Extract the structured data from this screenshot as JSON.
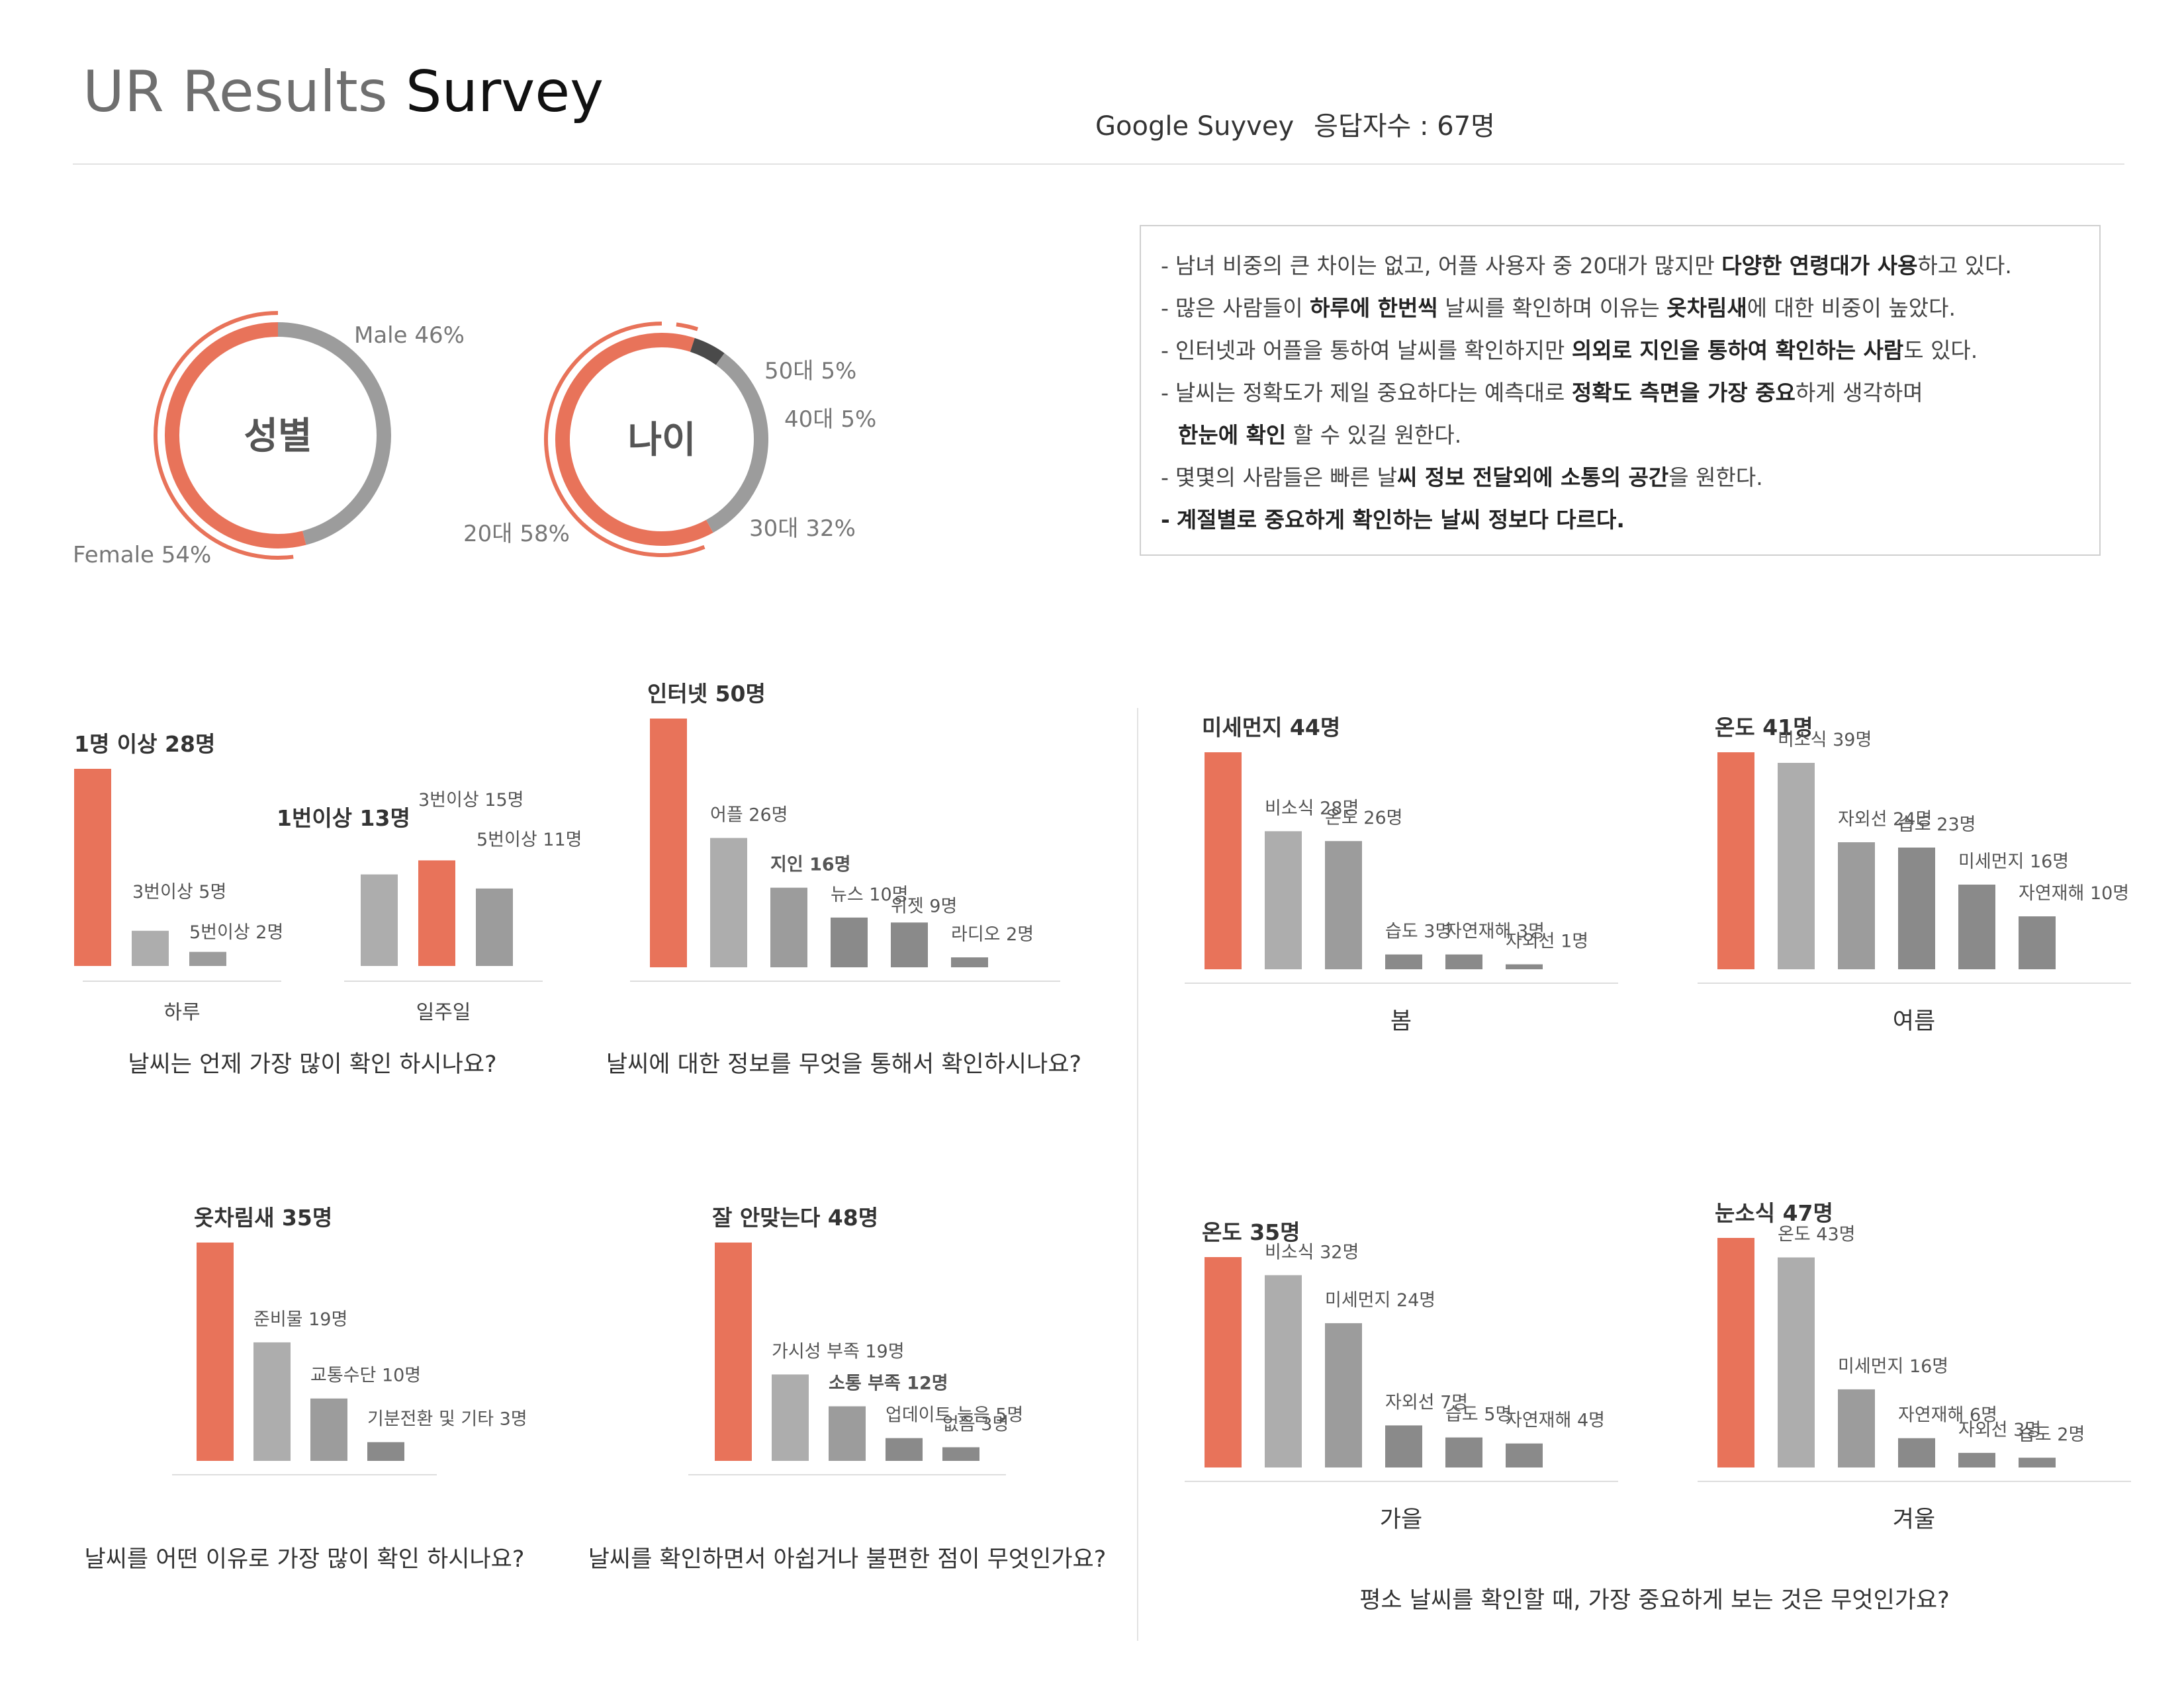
{
  "header": {
    "title_light": "UR Results",
    "title_bold": "Survey",
    "source": "Google Suyvey",
    "respondents": "응답자수 : 67명"
  },
  "summary": {
    "lines": [
      {
        "parts": [
          {
            "t": "남녀 비중의 큰 차이는 없고, 어플 사용자 중 20대가 많지만 "
          },
          {
            "t": "다양한 연령대가 사용",
            "b": true
          },
          {
            "t": "하고 있다."
          }
        ]
      },
      {
        "parts": [
          {
            "t": "많은 사람들이 "
          },
          {
            "t": "하루에 한번씩",
            "b": true
          },
          {
            "t": " 날씨를 확인하며 이유는 "
          },
          {
            "t": "옷차림새",
            "b": true
          },
          {
            "t": "에 대한 비중이 높았다."
          }
        ]
      },
      {
        "parts": [
          {
            "t": "인터넷과 어플을 통하여 날씨를 확인하지만 "
          },
          {
            "t": "의외로 지인을 통하여 확인하는 사람",
            "b": true
          },
          {
            "t": "도 있다."
          }
        ]
      },
      {
        "parts": [
          {
            "t": "날씨는 정확도가 제일 중요하다는 예측대로 "
          },
          {
            "t": "정확도 측면을 가장 중요",
            "b": true
          },
          {
            "t": "하게 생각하며"
          }
        ]
      },
      {
        "indent": true,
        "parts": [
          {
            "t": "한눈에 확인",
            "b": true
          },
          {
            "t": " 할 수 있길 원한다."
          }
        ]
      },
      {
        "parts": [
          {
            "t": "몇몇의 사람들은 빠른 날"
          },
          {
            "t": "씨 정보 전달외에 소통의 공간",
            "b": true
          },
          {
            "t": "을 원한다."
          }
        ]
      },
      {
        "boldAll": true,
        "parts": [
          {
            "t": "계절별로 중요하게 확인하는 날씨 정보다 다르다."
          }
        ]
      }
    ]
  },
  "colors": {
    "accent": "#e8735a",
    "gray1": "#adadad",
    "gray2": "#9c9c9c",
    "gray3": "#8a8a8a",
    "gray4": "#7a7a7a",
    "dark": "#4a4a4a",
    "axis": "#dddddd"
  },
  "chart_data": [
    {
      "type": "pie",
      "title": "성별",
      "slices": [
        {
          "label": "Male 46%",
          "value": 46
        },
        {
          "label": "Female 54%",
          "value": 54
        }
      ]
    },
    {
      "type": "pie",
      "title": "나이",
      "slices": [
        {
          "label": "50대 5%",
          "value": 5
        },
        {
          "label": "40대 5%",
          "value": 5
        },
        {
          "label": "30대 32%",
          "value": 32
        },
        {
          "label": "20대 58%",
          "value": 58
        }
      ]
    },
    {
      "type": "bar",
      "question": "날씨는 언제 가장 많이 확인 하시나요?",
      "groups": [
        {
          "name": "하루",
          "bars": [
            {
              "label": "1명 이상 28명",
              "value": 28
            },
            {
              "label": "3번이상 5명",
              "value": 5
            },
            {
              "label": "5번이상 2명",
              "value": 2
            }
          ]
        },
        {
          "name": "일주일",
          "bars": [
            {
              "label": "1번이상 13명",
              "value": 13
            },
            {
              "label": "3번이상 15명",
              "value": 15
            },
            {
              "label": "5번이상 11명",
              "value": 11
            }
          ]
        }
      ]
    },
    {
      "type": "bar",
      "question": "날씨에 대한 정보를 무엇을 통해서 확인하시나요?",
      "bars": [
        {
          "label": "인터넷 50명",
          "value": 50
        },
        {
          "label": "어플 26명",
          "value": 26
        },
        {
          "label": "지인 16명",
          "value": 16
        },
        {
          "label": "뉴스 10명",
          "value": 10
        },
        {
          "label": "위젯 9명",
          "value": 9
        },
        {
          "label": "라디오 2명",
          "value": 2
        }
      ]
    },
    {
      "type": "bar",
      "question": "날씨를 어떤 이유로 가장 많이 확인 하시나요?",
      "bars": [
        {
          "label": "옷차림새 35명",
          "value": 35
        },
        {
          "label": "준비물 19명",
          "value": 19
        },
        {
          "label": "교통수단 10명",
          "value": 10
        },
        {
          "label": "기분전환 및 기타 3명",
          "value": 3
        }
      ]
    },
    {
      "type": "bar",
      "question": "날씨를 확인하면서 아쉽거나 불편한 점이 무엇인가요?",
      "bars": [
        {
          "label": "잘 안맞는다 48명",
          "value": 48
        },
        {
          "label": "가시성 부족 19명",
          "value": 19
        },
        {
          "label": "소통 부족 12명",
          "value": 12
        },
        {
          "label": "업데이트 늦음 5명",
          "value": 5
        },
        {
          "label": "없음 3명",
          "value": 3
        }
      ]
    },
    {
      "type": "bar",
      "season": "봄",
      "bars": [
        {
          "label": "미세먼지 44명",
          "value": 44
        },
        {
          "label": "비소식 28명",
          "value": 28
        },
        {
          "label": "온도 26명",
          "value": 26
        },
        {
          "label": "습도 3명",
          "value": 3
        },
        {
          "label": "자연재해 3명",
          "value": 3
        },
        {
          "label": "자외선 1명",
          "value": 1
        }
      ]
    },
    {
      "type": "bar",
      "season": "여름",
      "bars": [
        {
          "label": "온도 41명",
          "value": 41
        },
        {
          "label": "비소식 39명",
          "value": 39
        },
        {
          "label": "자외선 24명",
          "value": 24
        },
        {
          "label": "습도 23명",
          "value": 23
        },
        {
          "label": "미세먼지 16명",
          "value": 16
        },
        {
          "label": "자연재해 10명",
          "value": 10
        }
      ]
    },
    {
      "type": "bar",
      "season": "가을",
      "bars": [
        {
          "label": "온도 35명",
          "value": 35
        },
        {
          "label": "비소식 32명",
          "value": 32
        },
        {
          "label": "미세먼지 24명",
          "value": 24
        },
        {
          "label": "자외선 7명",
          "value": 7
        },
        {
          "label": "습도 5명",
          "value": 5
        },
        {
          "label": "자연재해 4명",
          "value": 4
        }
      ]
    },
    {
      "type": "bar",
      "season": "겨울",
      "bars": [
        {
          "label": "눈소식 47명",
          "value": 47
        },
        {
          "label": "온도 43명",
          "value": 43
        },
        {
          "label": "미세먼지 16명",
          "value": 16
        },
        {
          "label": "자연재해 6명",
          "value": 6
        },
        {
          "label": "자외선 3명",
          "value": 3
        },
        {
          "label": "습도 2명",
          "value": 2
        }
      ]
    }
  ],
  "season_question": "평소 날씨를 확인할 때, 가장 중요하게 보는 것은 무엇인가요?"
}
